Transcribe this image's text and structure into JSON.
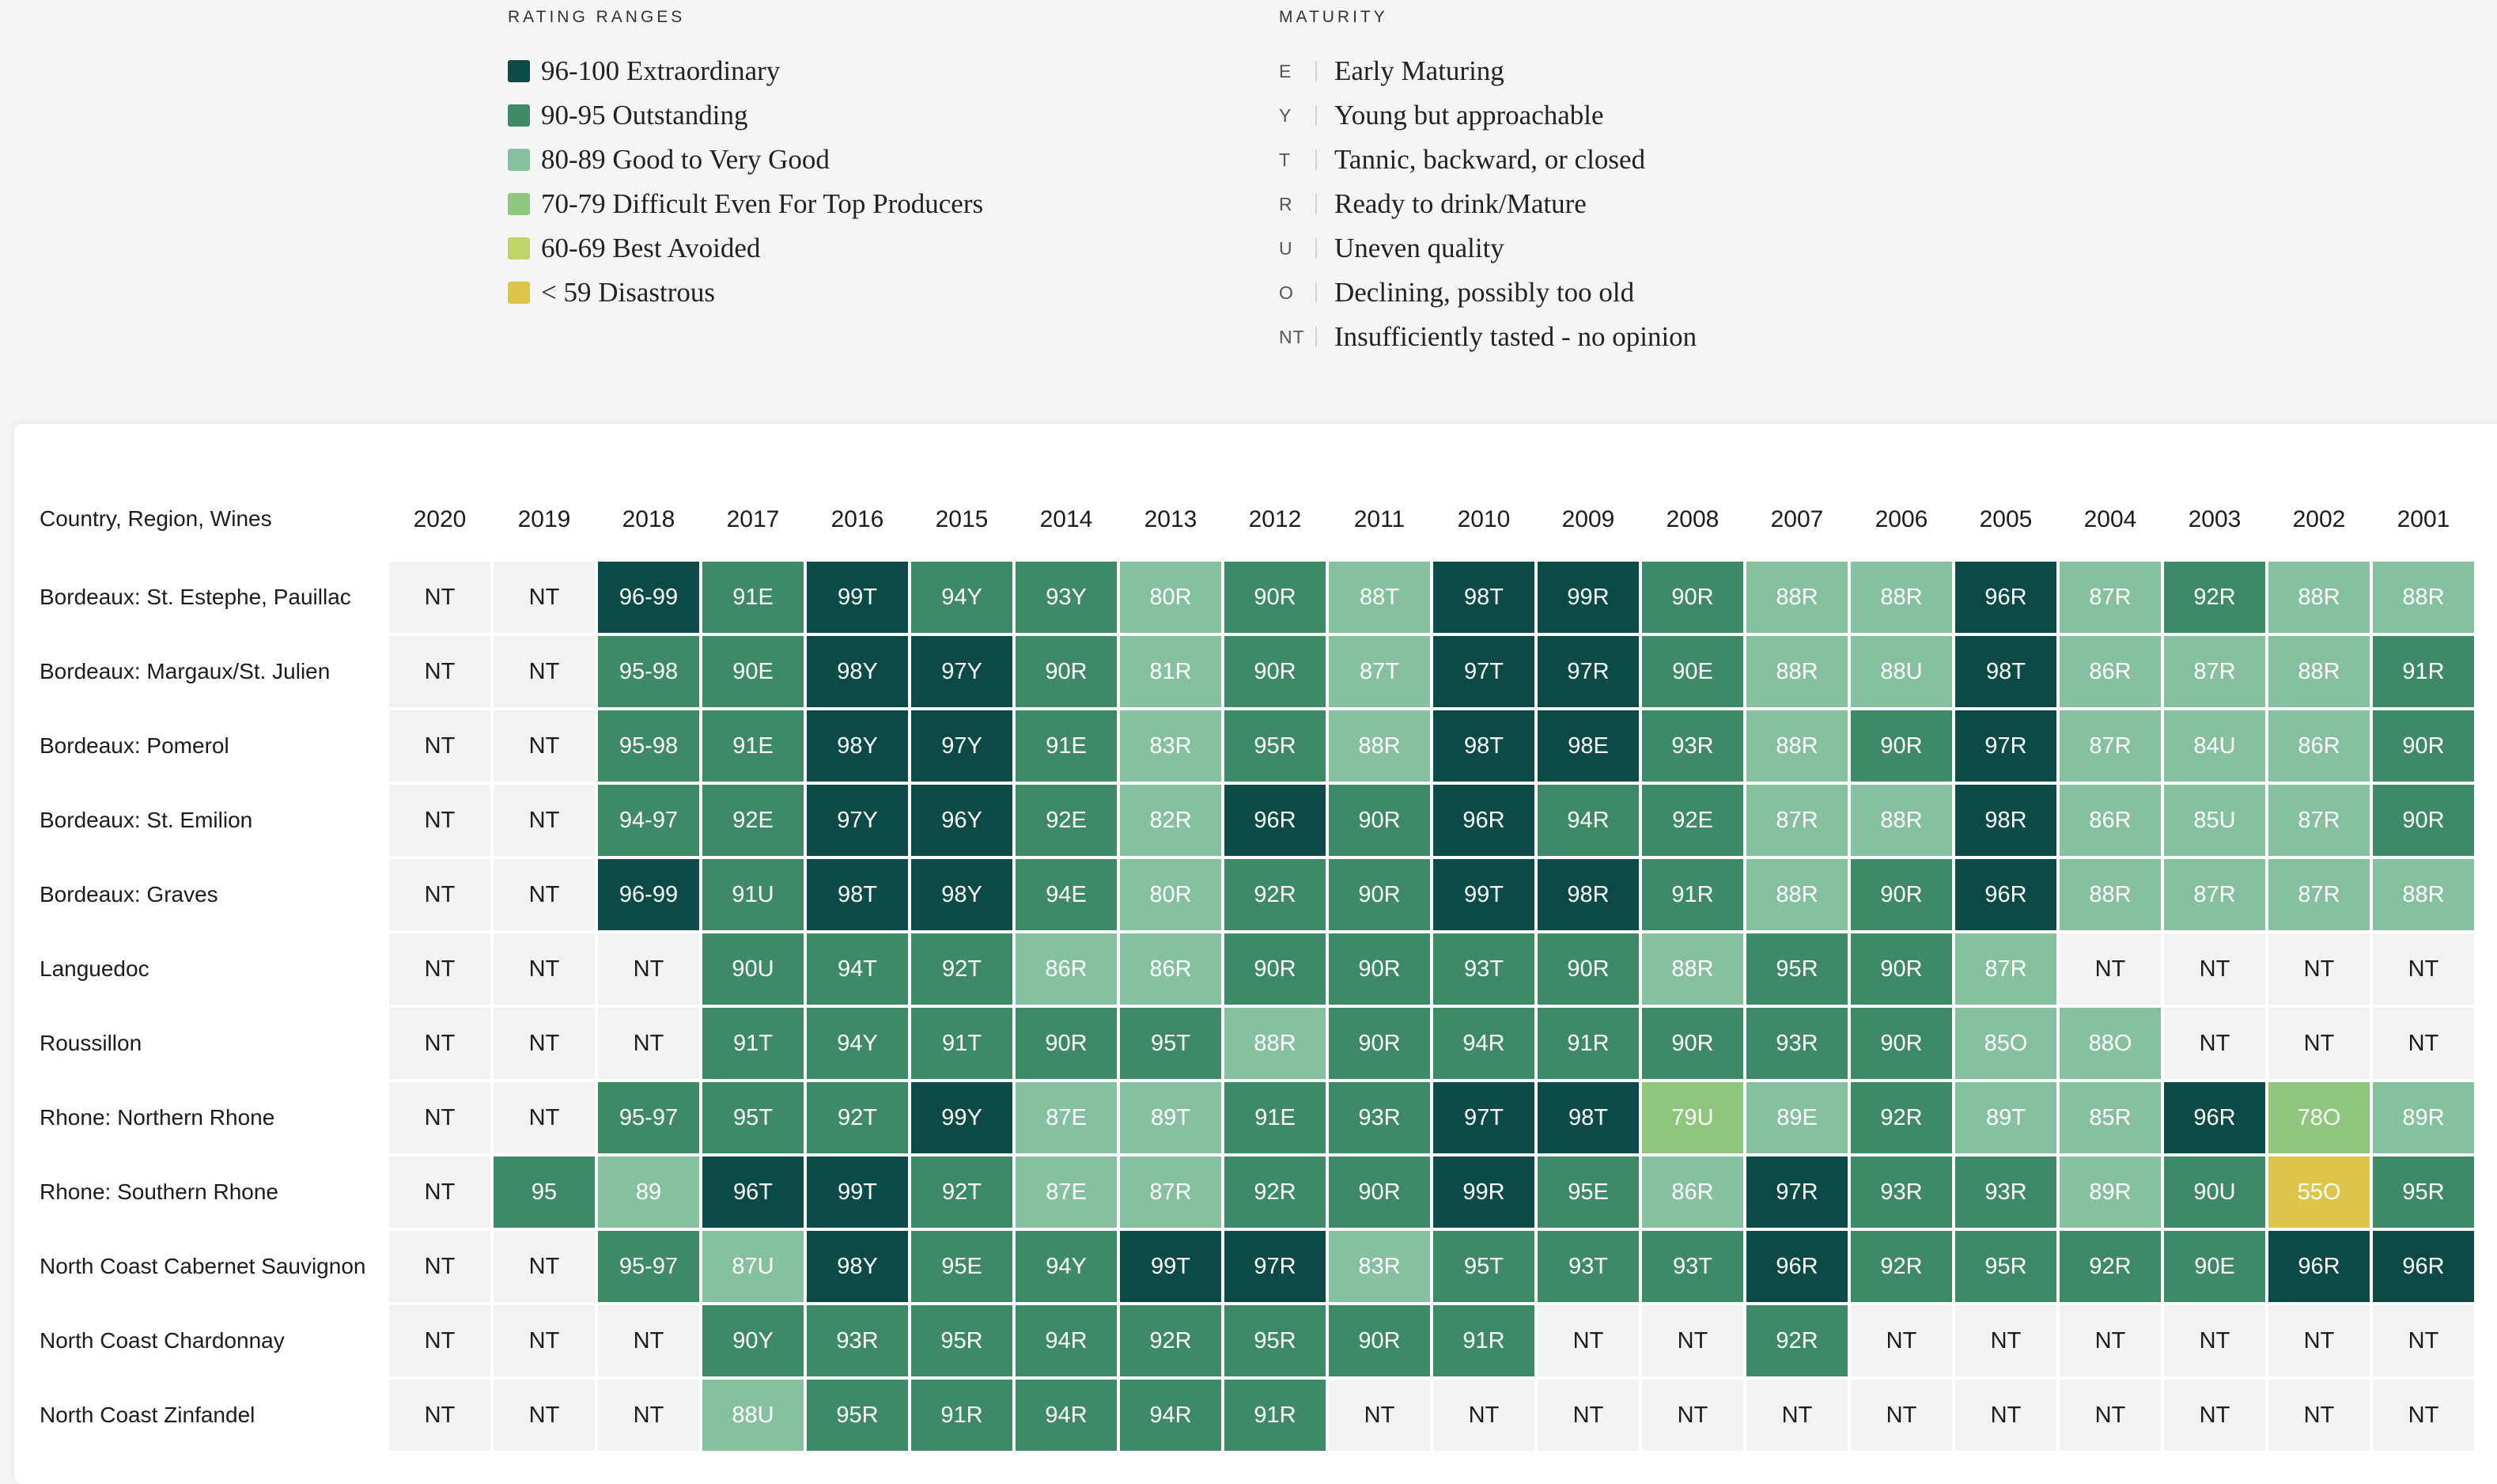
{
  "legend": {
    "rating_title": "RATING RANGES",
    "rating_items": [
      {
        "label": "96-100 Extraordinary",
        "color": "#0b4a47"
      },
      {
        "label": "90-95 Outstanding",
        "color": "#3f8a66"
      },
      {
        "label": "80-89 Good to Very Good",
        "color": "#86c19f"
      },
      {
        "label": "70-79 Difficult Even For Top Producers",
        "color": "#8ec67e"
      },
      {
        "label": "60-69 Best Avoided",
        "color": "#bdd468"
      },
      {
        "label": "< 59 Disastrous",
        "color": "#dcc54a"
      }
    ],
    "maturity_title": "MATURITY",
    "maturity_items": [
      {
        "code": "E",
        "label": "Early Maturing"
      },
      {
        "code": "Y",
        "label": "Young but approachable"
      },
      {
        "code": "T",
        "label": "Tannic, backward, or closed"
      },
      {
        "code": "R",
        "label": "Ready to drink/Mature"
      },
      {
        "code": "U",
        "label": "Uneven quality"
      },
      {
        "code": "O",
        "label": "Declining, possibly too old"
      },
      {
        "code": "NT",
        "label": "Insufficiently tasted - no opinion"
      }
    ]
  },
  "chart_data": {
    "type": "table",
    "row_header": "Country, Region, Wines",
    "columns": [
      "2020",
      "2019",
      "2018",
      "2017",
      "2016",
      "2015",
      "2014",
      "2013",
      "2012",
      "2011",
      "2010",
      "2009",
      "2008",
      "2007",
      "2006",
      "2005",
      "2004",
      "2003",
      "2002",
      "2001"
    ],
    "rows": [
      {
        "label": "Bordeaux: St. Estephe, Pauillac",
        "values": [
          "NT",
          "NT",
          "96-99",
          "91E",
          "99T",
          "94Y",
          "93Y",
          "80R",
          "90R",
          "88T",
          "98T",
          "99R",
          "90R",
          "88R",
          "88R",
          "96R",
          "87R",
          "92R",
          "88R",
          "88R"
        ]
      },
      {
        "label": "Bordeaux: Margaux/St. Julien",
        "values": [
          "NT",
          "NT",
          "95-98",
          "90E",
          "98Y",
          "97Y",
          "90R",
          "81R",
          "90R",
          "87T",
          "97T",
          "97R",
          "90E",
          "88R",
          "88U",
          "98T",
          "86R",
          "87R",
          "88R",
          "91R"
        ]
      },
      {
        "label": "Bordeaux: Pomerol",
        "values": [
          "NT",
          "NT",
          "95-98",
          "91E",
          "98Y",
          "97Y",
          "91E",
          "83R",
          "95R",
          "88R",
          "98T",
          "98E",
          "93R",
          "88R",
          "90R",
          "97R",
          "87R",
          "84U",
          "86R",
          "90R"
        ]
      },
      {
        "label": "Bordeaux: St. Emilion",
        "values": [
          "NT",
          "NT",
          "94-97",
          "92E",
          "97Y",
          "96Y",
          "92E",
          "82R",
          "96R",
          "90R",
          "96R",
          "94R",
          "92E",
          "87R",
          "88R",
          "98R",
          "86R",
          "85U",
          "87R",
          "90R"
        ]
      },
      {
        "label": "Bordeaux: Graves",
        "values": [
          "NT",
          "NT",
          "96-99",
          "91U",
          "98T",
          "98Y",
          "94E",
          "80R",
          "92R",
          "90R",
          "99T",
          "98R",
          "91R",
          "88R",
          "90R",
          "96R",
          "88R",
          "87R",
          "87R",
          "88R"
        ]
      },
      {
        "label": "Languedoc",
        "values": [
          "NT",
          "NT",
          "NT",
          "90U",
          "94T",
          "92T",
          "86R",
          "86R",
          "90R",
          "90R",
          "93T",
          "90R",
          "88R",
          "95R",
          "90R",
          "87R",
          "NT",
          "NT",
          "NT",
          "NT"
        ]
      },
      {
        "label": "Roussillon",
        "values": [
          "NT",
          "NT",
          "NT",
          "91T",
          "94Y",
          "91T",
          "90R",
          "95T",
          "88R",
          "90R",
          "94R",
          "91R",
          "90R",
          "93R",
          "90R",
          "85O",
          "88O",
          "NT",
          "NT",
          "NT"
        ]
      },
      {
        "label": "Rhone: Northern Rhone",
        "values": [
          "NT",
          "NT",
          "95-97",
          "95T",
          "92T",
          "99Y",
          "87E",
          "89T",
          "91E",
          "93R",
          "97T",
          "98T",
          "79U",
          "89E",
          "92R",
          "89T",
          "85R",
          "96R",
          "78O",
          "89R"
        ]
      },
      {
        "label": "Rhone: Southern Rhone",
        "values": [
          "NT",
          "95",
          "89",
          "96T",
          "99T",
          "92T",
          "87E",
          "87R",
          "92R",
          "90R",
          "99R",
          "95E",
          "86R",
          "97R",
          "93R",
          "93R",
          "89R",
          "90U",
          "55O",
          "95R"
        ]
      },
      {
        "label": "North Coast Cabernet Sauvignon",
        "values": [
          "NT",
          "NT",
          "95-97",
          "87U",
          "98Y",
          "95E",
          "94Y",
          "99T",
          "97R",
          "83R",
          "95T",
          "93T",
          "93T",
          "96R",
          "92R",
          "95R",
          "92R",
          "90E",
          "96R",
          "96R"
        ]
      },
      {
        "label": "North Coast Chardonnay",
        "values": [
          "NT",
          "NT",
          "NT",
          "90Y",
          "93R",
          "95R",
          "94R",
          "92R",
          "95R",
          "90R",
          "91R",
          "NT",
          "NT",
          "92R",
          "NT",
          "NT",
          "NT",
          "NT",
          "NT",
          "NT"
        ]
      },
      {
        "label": "North Coast Zinfandel",
        "values": [
          "NT",
          "NT",
          "NT",
          "88U",
          "95R",
          "91R",
          "94R",
          "94R",
          "91R",
          "NT",
          "NT",
          "NT",
          "NT",
          "NT",
          "NT",
          "NT",
          "NT",
          "NT",
          "NT",
          "NT"
        ]
      }
    ],
    "colors": {
      "extraordinary": "#0b4a47",
      "outstanding": "#3f8a66",
      "good": "#86c19f",
      "difficult": "#8ec67e",
      "avoided": "#bdd468",
      "disastrous": "#dcc54a",
      "not_tasted": "#f1f2f4"
    }
  }
}
